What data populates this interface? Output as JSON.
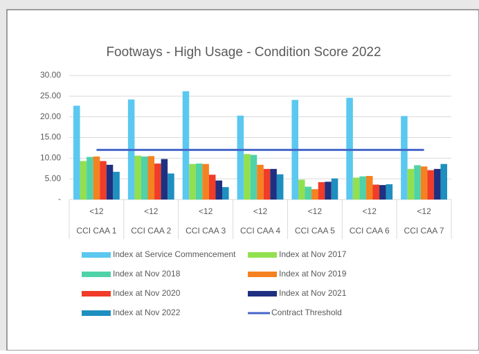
{
  "chart_data": {
    "type": "bar",
    "title": "Footways - High Usage  - Condition Score 2022",
    "categories": [
      "CCI CAA 1",
      "CCI CAA 2",
      "CCI CAA 3",
      "CCI CAA 4",
      "CCI CAA 5",
      "CCI CAA 6",
      "CCI CAA 7"
    ],
    "subcategories": [
      "<12",
      "<12",
      "<12",
      "<12",
      "<12",
      "<12",
      "<12"
    ],
    "series": [
      {
        "name": "Index at Service Commencement",
        "color": "#5bc8f0",
        "values": [
          22.7,
          24.2,
          26.2,
          20.3,
          24.1,
          24.6,
          20.2
        ]
      },
      {
        "name": "Index at Nov 2017",
        "color": "#92e050",
        "values": [
          9.3,
          10.6,
          8.6,
          11.0,
          4.8,
          5.3,
          7.4
        ]
      },
      {
        "name": "Index at Nov 2018",
        "color": "#4fd2a8",
        "values": [
          10.3,
          10.4,
          8.7,
          10.8,
          3.1,
          5.6,
          8.3
        ]
      },
      {
        "name": "Index at Nov 2019",
        "color": "#f58220",
        "values": [
          10.4,
          10.5,
          8.6,
          8.4,
          2.5,
          5.7,
          8.0
        ]
      },
      {
        "name": "Index at Nov 2020",
        "color": "#f03c28",
        "values": [
          9.3,
          8.7,
          6.0,
          7.4,
          4.2,
          3.6,
          7.1
        ]
      },
      {
        "name": "Index at Nov 2021",
        "color": "#203080",
        "values": [
          8.4,
          9.8,
          4.6,
          7.4,
          4.3,
          3.5,
          7.4
        ]
      },
      {
        "name": "Index at Nov 2022",
        "color": "#1f8fc0",
        "values": [
          6.7,
          6.3,
          3.0,
          6.1,
          5.1,
          3.7,
          8.6
        ]
      },
      {
        "name": "Contract Threshold",
        "color": "#4466c8",
        "type": "line",
        "values": [
          12,
          12,
          12,
          12,
          12,
          12,
          12
        ]
      }
    ],
    "ylim": [
      0,
      30
    ],
    "yticks": [
      {
        "value": 0,
        "label": "-"
      },
      {
        "value": 5,
        "label": "5.00"
      },
      {
        "value": 10,
        "label": "10.00"
      },
      {
        "value": 15,
        "label": "15.00"
      },
      {
        "value": 20,
        "label": "20.00"
      },
      {
        "value": 25,
        "label": "25.00"
      },
      {
        "value": 30,
        "label": "30.00"
      }
    ],
    "grid": true
  }
}
